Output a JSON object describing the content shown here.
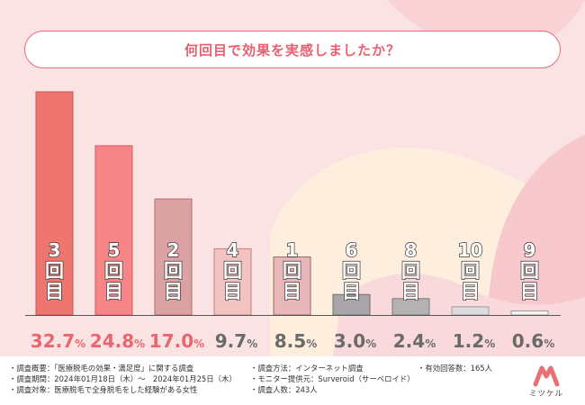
{
  "title": "何回目で効果を実感しましたか？",
  "chart_data": {
    "type": "bar",
    "categories": [
      "3回目",
      "5回目",
      "2回目",
      "4回目",
      "1回目",
      "6回目",
      "8回目",
      "10回目",
      "9回目"
    ],
    "category_numbers": [
      "3",
      "5",
      "2",
      "4",
      "1",
      "6",
      "8",
      "10",
      "9"
    ],
    "category_suffix": "回目",
    "values": [
      32.7,
      24.8,
      17.0,
      9.7,
      8.5,
      3.0,
      2.4,
      1.2,
      0.6
    ],
    "value_labels": [
      {
        "num": "32.7",
        "unit": "%"
      },
      {
        "num": "24.8",
        "unit": "%"
      },
      {
        "num": "17.0",
        "unit": "%"
      },
      {
        "num": "9.7",
        "unit": "%"
      },
      {
        "num": "8.5",
        "unit": "%"
      },
      {
        "num": "3.0",
        "unit": "%"
      },
      {
        "num": "2.4",
        "unit": "%"
      },
      {
        "num": "1.2",
        "unit": "%"
      },
      {
        "num": "0.6",
        "unit": "%"
      }
    ],
    "ylim": [
      0,
      32.7
    ],
    "grid": false,
    "colors": {
      "fills": [
        "#ee766f",
        "#f58586",
        "#dba2a4",
        "#f2c3c1",
        "#e8b7b9",
        "#a8a6a8",
        "#b3b1b2",
        "#dcdcdc",
        "#f3f3f3"
      ],
      "strokes": [
        "#d0504c",
        "#d85a61",
        "#b7686d",
        "#c47f7e",
        "#a06566",
        "#717071",
        "#7b797b",
        "#9b9b9b",
        "#999999"
      ],
      "category_label": "#ffffff",
      "category_label_stroke": "#333333",
      "value_label_highlight": "#e8666e",
      "value_label_normal": "#6a6a6a"
    }
  },
  "footer": {
    "overview": "・調査概要：「医療脱毛の効果・満足度」に関する調査",
    "period": "・調査期間：2024年01月18日（木）～　2024年01月25日（木）",
    "target": "・調査対象：医療脱毛で全身脱毛をした経験がある女性",
    "method": "・調査方法：インターネット調査",
    "provider": "・モニター提供元：Surveroid（サーベロイド）",
    "people": "・調査人数：243人",
    "valid": "・有効回答数：165人"
  },
  "logo": {
    "text": "ミツケル",
    "icon": "mitsukeru-m-logo-icon",
    "color": "#ec6f75"
  }
}
